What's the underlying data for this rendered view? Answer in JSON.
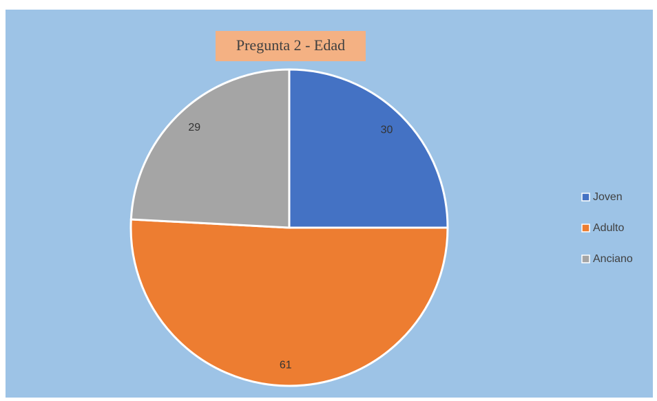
{
  "chart_data": {
    "type": "pie",
    "title": "Pregunta 2 - Edad",
    "categories": [
      "Joven",
      "Adulto",
      "Anciano"
    ],
    "values": [
      30,
      61,
      29
    ],
    "colors": [
      "#4472c4",
      "#ed7d31",
      "#a5a5a5"
    ],
    "legend": "right"
  }
}
